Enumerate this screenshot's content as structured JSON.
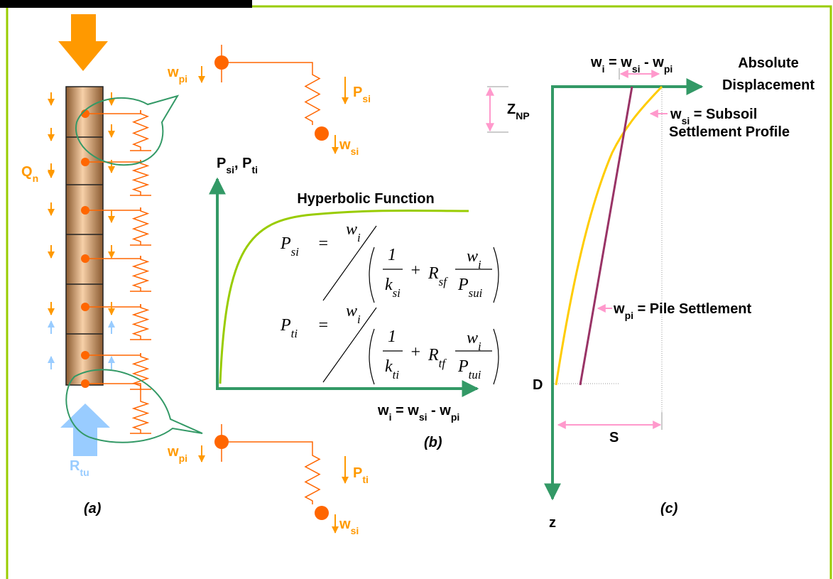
{
  "panel_labels": {
    "a": "(a)",
    "b": "(b)",
    "c": "(c)"
  },
  "panel_a": {
    "side_load": [
      "Q",
      "n"
    ],
    "tip_resistance": [
      "R",
      "tu"
    ]
  },
  "details": [
    {
      "pile_disp": [
        "w",
        "pi"
      ],
      "force": [
        "P",
        "si"
      ],
      "soil_disp": [
        "w",
        "si"
      ]
    },
    {
      "pile_disp": [
        "w",
        "pi"
      ],
      "force": [
        "P",
        "ti"
      ],
      "soil_disp": [
        "w",
        "si"
      ]
    }
  ],
  "panel_b": {
    "title": "Hyperbolic Function",
    "y_label": [
      "P",
      "si",
      ", P",
      "ti"
    ],
    "x_label": [
      "w",
      "i",
      " = w",
      "si",
      " - w",
      "pi"
    ],
    "formulas": [
      {
        "lhs": [
          "P",
          "si"
        ],
        "equals": "=",
        "numerator": [
          "w",
          "i"
        ],
        "one": "1",
        "stiffness": [
          "k",
          "si"
        ],
        "plus": "+",
        "ratio": [
          "R",
          "sf"
        ],
        "ratio_num": [
          "w",
          "i"
        ],
        "ratio_den": [
          "P",
          "sui"
        ]
      },
      {
        "lhs": [
          "P",
          "ti"
        ],
        "equals": "=",
        "numerator": [
          "w",
          "i"
        ],
        "one": "1",
        "stiffness": [
          "k",
          "ti"
        ],
        "plus": "+",
        "ratio": [
          "R",
          "tf"
        ],
        "ratio_num": [
          "w",
          "i"
        ],
        "ratio_den": [
          "P",
          "tui"
        ]
      }
    ]
  },
  "panel_c": {
    "top_label": [
      "w",
      "i",
      " = w",
      "si",
      " - w",
      "pi"
    ],
    "x_axis": [
      "Absolute",
      "Displacement"
    ],
    "z_np": [
      "Z",
      "NP"
    ],
    "soil_label": [
      [
        "w",
        "si",
        " = Subsoil"
      ],
      [
        "Settlement Profile"
      ]
    ],
    "pile_label": [
      "w",
      "pi",
      " = Pile Settlement"
    ],
    "depth": "D",
    "settlement": "S",
    "z_axis": "z"
  }
}
